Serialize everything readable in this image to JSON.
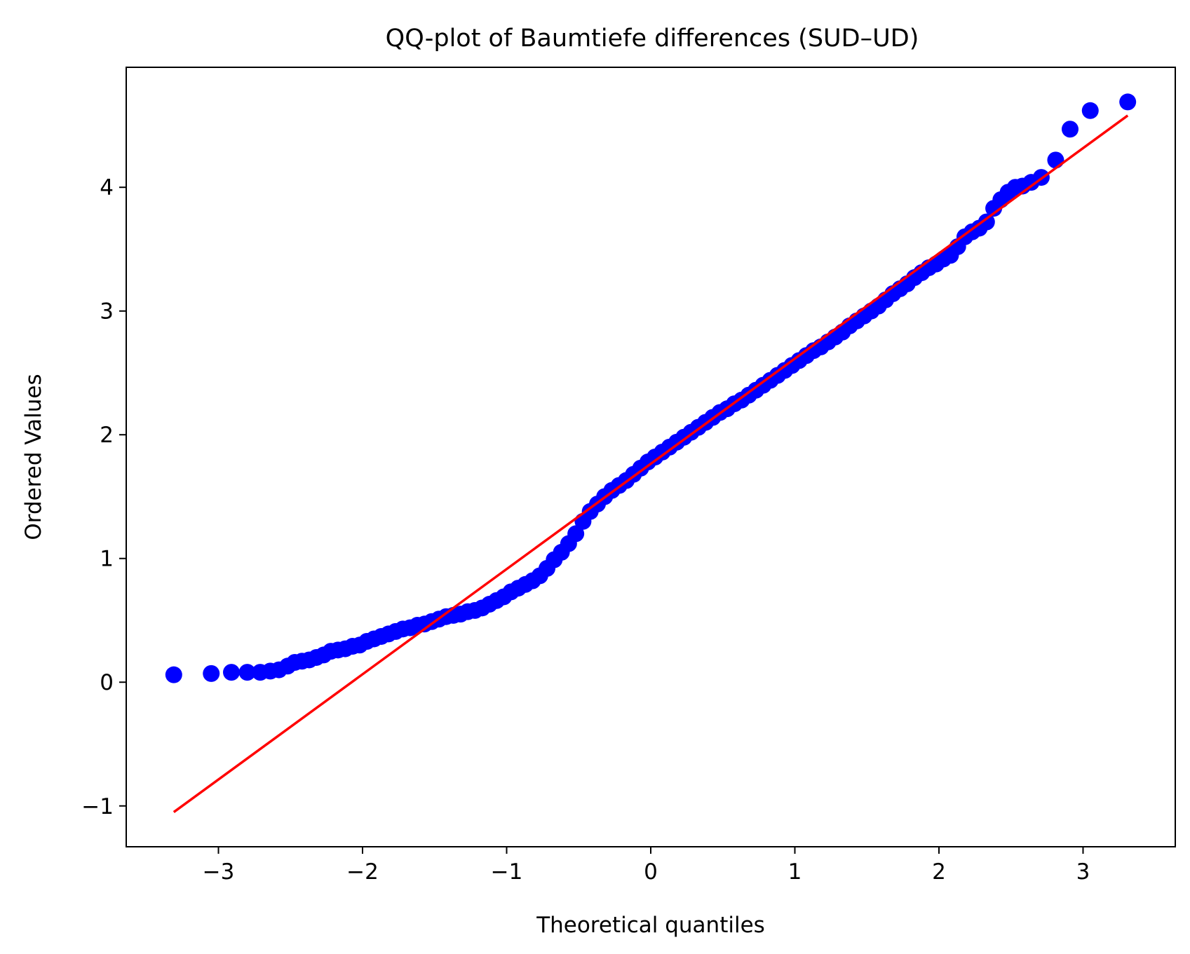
{
  "chart_data": {
    "type": "scatter",
    "title": "QQ-plot of Baumtiefe differences (SUD–UD)",
    "xlabel": "Theoretical quantiles",
    "ylabel": "Ordered Values",
    "xlim": [
      -3.64,
      3.64
    ],
    "ylim": [
      -1.33,
      4.97
    ],
    "xticks": [
      {
        "value": -3,
        "label": "−3"
      },
      {
        "value": -2,
        "label": "−2"
      },
      {
        "value": -1,
        "label": "−1"
      },
      {
        "value": 0,
        "label": "0"
      },
      {
        "value": 1,
        "label": "1"
      },
      {
        "value": 2,
        "label": "2"
      },
      {
        "value": 3,
        "label": "3"
      }
    ],
    "yticks": [
      {
        "value": -1,
        "label": "−1"
      },
      {
        "value": 0,
        "label": "0"
      },
      {
        "value": 1,
        "label": "1"
      },
      {
        "value": 2,
        "label": "2"
      },
      {
        "value": 3,
        "label": "3"
      },
      {
        "value": 4,
        "label": "4"
      }
    ],
    "grid": false,
    "series": [
      {
        "kind": "points",
        "color": "#0000ff",
        "points": [
          [
            -3.31,
            0.06
          ],
          [
            -3.05,
            0.07
          ],
          [
            -2.91,
            0.08
          ],
          [
            -2.8,
            0.08
          ],
          [
            -2.71,
            0.08
          ],
          [
            -2.64,
            0.09
          ],
          [
            -2.58,
            0.1
          ],
          [
            -2.52,
            0.13
          ],
          [
            -2.47,
            0.16
          ],
          [
            -2.42,
            0.17
          ],
          [
            -2.37,
            0.18
          ],
          [
            -2.32,
            0.2
          ],
          [
            -2.27,
            0.22
          ],
          [
            -2.22,
            0.25
          ],
          [
            -2.17,
            0.26
          ],
          [
            -2.12,
            0.27
          ],
          [
            -2.07,
            0.29
          ],
          [
            -2.02,
            0.3
          ],
          [
            -1.97,
            0.33
          ],
          [
            -1.92,
            0.35
          ],
          [
            -1.87,
            0.37
          ],
          [
            -1.82,
            0.39
          ],
          [
            -1.77,
            0.41
          ],
          [
            -1.72,
            0.43
          ],
          [
            -1.67,
            0.44
          ],
          [
            -1.62,
            0.46
          ],
          [
            -1.57,
            0.47
          ],
          [
            -1.52,
            0.49
          ],
          [
            -1.47,
            0.51
          ],
          [
            -1.42,
            0.53
          ],
          [
            -1.37,
            0.54
          ],
          [
            -1.32,
            0.55
          ],
          [
            -1.27,
            0.57
          ],
          [
            -1.22,
            0.58
          ],
          [
            -1.17,
            0.6
          ],
          [
            -1.12,
            0.63
          ],
          [
            -1.07,
            0.66
          ],
          [
            -1.02,
            0.69
          ],
          [
            -0.97,
            0.73
          ],
          [
            -0.92,
            0.76
          ],
          [
            -0.87,
            0.79
          ],
          [
            -0.82,
            0.82
          ],
          [
            -0.77,
            0.86
          ],
          [
            -0.72,
            0.92
          ],
          [
            -0.67,
            0.99
          ],
          [
            -0.62,
            1.05
          ],
          [
            -0.57,
            1.12
          ],
          [
            -0.52,
            1.2
          ],
          [
            -0.47,
            1.3
          ],
          [
            -0.42,
            1.38
          ],
          [
            -0.37,
            1.44
          ],
          [
            -0.32,
            1.5
          ],
          [
            -0.27,
            1.55
          ],
          [
            -0.22,
            1.59
          ],
          [
            -0.17,
            1.63
          ],
          [
            -0.12,
            1.68
          ],
          [
            -0.07,
            1.73
          ],
          [
            -0.02,
            1.78
          ],
          [
            0.03,
            1.82
          ],
          [
            0.08,
            1.86
          ],
          [
            0.13,
            1.9
          ],
          [
            0.18,
            1.94
          ],
          [
            0.23,
            1.98
          ],
          [
            0.28,
            2.02
          ],
          [
            0.33,
            2.06
          ],
          [
            0.38,
            2.1
          ],
          [
            0.43,
            2.14
          ],
          [
            0.48,
            2.18
          ],
          [
            0.53,
            2.21
          ],
          [
            0.58,
            2.25
          ],
          [
            0.63,
            2.28
          ],
          [
            0.68,
            2.32
          ],
          [
            0.73,
            2.36
          ],
          [
            0.78,
            2.4
          ],
          [
            0.83,
            2.44
          ],
          [
            0.88,
            2.48
          ],
          [
            0.93,
            2.52
          ],
          [
            0.98,
            2.56
          ],
          [
            1.03,
            2.6
          ],
          [
            1.08,
            2.64
          ],
          [
            1.13,
            2.68
          ],
          [
            1.18,
            2.71
          ],
          [
            1.23,
            2.75
          ],
          [
            1.28,
            2.79
          ],
          [
            1.33,
            2.83
          ],
          [
            1.38,
            2.88
          ],
          [
            1.43,
            2.92
          ],
          [
            1.48,
            2.96
          ],
          [
            1.53,
            3.0
          ],
          [
            1.58,
            3.04
          ],
          [
            1.63,
            3.09
          ],
          [
            1.68,
            3.14
          ],
          [
            1.73,
            3.18
          ],
          [
            1.78,
            3.22
          ],
          [
            1.83,
            3.27
          ],
          [
            1.88,
            3.31
          ],
          [
            1.93,
            3.35
          ],
          [
            1.98,
            3.38
          ],
          [
            2.03,
            3.42
          ],
          [
            2.08,
            3.45
          ],
          [
            2.13,
            3.52
          ],
          [
            2.18,
            3.6
          ],
          [
            2.23,
            3.64
          ],
          [
            2.28,
            3.67
          ],
          [
            2.33,
            3.72
          ],
          [
            2.38,
            3.83
          ],
          [
            2.43,
            3.9
          ],
          [
            2.48,
            3.96
          ],
          [
            2.53,
            4.0
          ],
          [
            2.58,
            4.01
          ],
          [
            2.64,
            4.04
          ],
          [
            2.71,
            4.08
          ],
          [
            2.81,
            4.22
          ],
          [
            2.91,
            4.47
          ],
          [
            3.05,
            4.62
          ],
          [
            3.31,
            4.69
          ]
        ]
      },
      {
        "kind": "fit-line",
        "color": "#ff0000",
        "x": [
          -3.31,
          3.31
        ],
        "y": [
          -1.05,
          4.58
        ]
      }
    ]
  }
}
